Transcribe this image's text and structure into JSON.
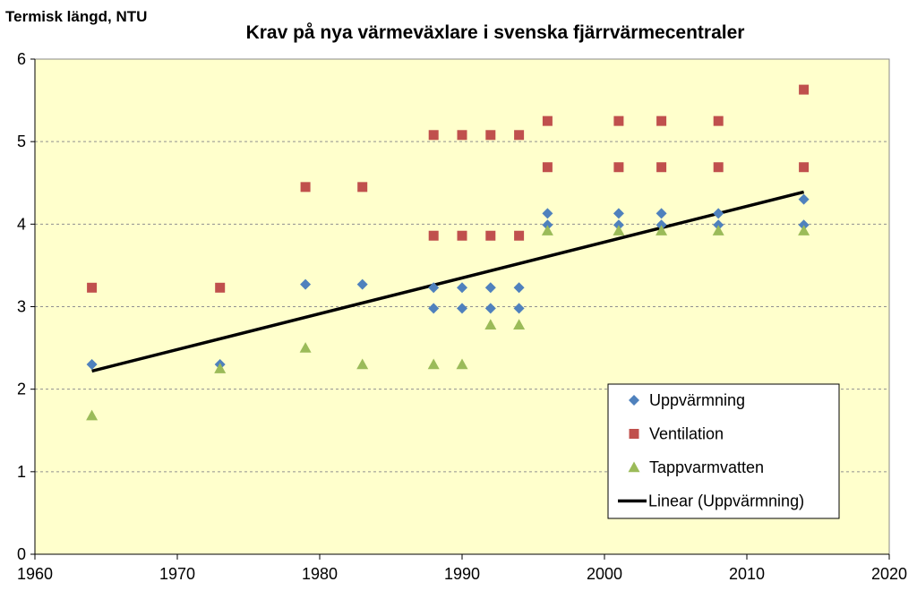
{
  "chart_data": {
    "type": "scatter",
    "title": "Krav på nya värmeväxlare i svenska fjärrvärmecentraler",
    "ylabel": "Termisk längd, NTU",
    "xlabel": "",
    "xlim": [
      1960,
      2020
    ],
    "ylim": [
      0,
      6
    ],
    "xticks": [
      "1960",
      "1970",
      "1980",
      "1990",
      "2000",
      "2010",
      "2020"
    ],
    "yticks": [
      "0",
      "1",
      "2",
      "3",
      "4",
      "5",
      "6"
    ],
    "grid": "horizontal-dashed",
    "background": "#FFFFCC",
    "legend_position": "bottom-right",
    "series": [
      {
        "name": "Uppvärmning",
        "marker": "diamond",
        "color": "#4F81BD",
        "points": [
          [
            1964,
            2.3
          ],
          [
            1973,
            2.3
          ],
          [
            1979,
            3.27
          ],
          [
            1983,
            3.27
          ],
          [
            1988,
            3.23
          ],
          [
            1988,
            2.98
          ],
          [
            1990,
            3.23
          ],
          [
            1990,
            2.98
          ],
          [
            1992,
            3.23
          ],
          [
            1992,
            2.98
          ],
          [
            1994,
            3.23
          ],
          [
            1994,
            2.98
          ],
          [
            1996,
            4.13
          ],
          [
            1996,
            3.99
          ],
          [
            2001,
            4.13
          ],
          [
            2001,
            3.99
          ],
          [
            2004,
            4.13
          ],
          [
            2004,
            3.99
          ],
          [
            2008,
            4.13
          ],
          [
            2008,
            3.99
          ],
          [
            2014,
            4.3
          ],
          [
            2014,
            3.99
          ]
        ]
      },
      {
        "name": "Ventilation",
        "marker": "square",
        "color": "#C0504D",
        "points": [
          [
            1964,
            3.23
          ],
          [
            1973,
            3.23
          ],
          [
            1979,
            4.45
          ],
          [
            1983,
            4.45
          ],
          [
            1988,
            5.08
          ],
          [
            1988,
            3.86
          ],
          [
            1990,
            5.08
          ],
          [
            1990,
            3.86
          ],
          [
            1992,
            5.08
          ],
          [
            1992,
            3.86
          ],
          [
            1994,
            5.08
          ],
          [
            1994,
            3.86
          ],
          [
            1996,
            5.25
          ],
          [
            1996,
            4.69
          ],
          [
            2001,
            5.25
          ],
          [
            2001,
            4.69
          ],
          [
            2004,
            5.25
          ],
          [
            2004,
            4.69
          ],
          [
            2008,
            5.25
          ],
          [
            2008,
            4.69
          ],
          [
            2014,
            5.63
          ],
          [
            2014,
            4.69
          ]
        ]
      },
      {
        "name": "Tappvarmvatten",
        "marker": "triangle",
        "color": "#9BBB59",
        "points": [
          [
            1964,
            1.68
          ],
          [
            1973,
            2.25
          ],
          [
            1979,
            2.5
          ],
          [
            1983,
            2.3
          ],
          [
            1988,
            2.3
          ],
          [
            1990,
            2.3
          ],
          [
            1992,
            2.78
          ],
          [
            1994,
            2.78
          ],
          [
            1996,
            3.92
          ],
          [
            2001,
            3.92
          ],
          [
            2004,
            3.92
          ],
          [
            2008,
            3.92
          ],
          [
            2014,
            3.92
          ]
        ]
      },
      {
        "name": "Linear (Uppvärmning)",
        "marker": "line",
        "color": "#000000",
        "points": [
          [
            1964,
            2.22
          ],
          [
            2014,
            4.39
          ]
        ]
      }
    ]
  }
}
